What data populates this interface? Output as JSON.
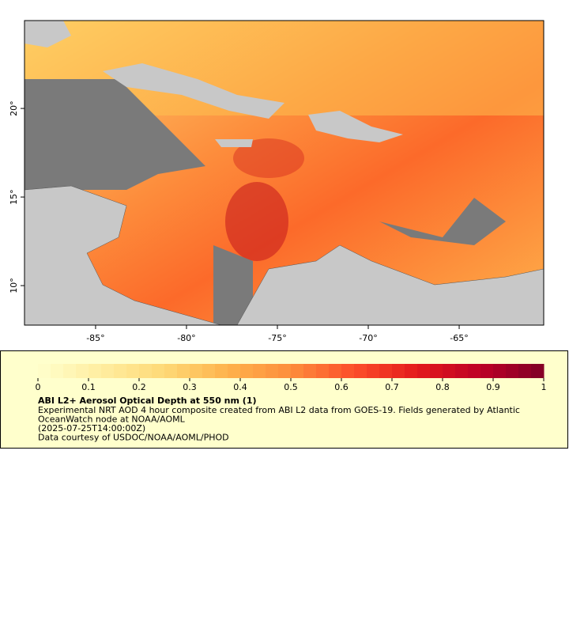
{
  "map": {
    "xlim": [
      -88.91,
      -60.35
    ],
    "ylim": [
      7.77,
      24.96
    ],
    "xticks": [
      {
        "value": -85,
        "label": "-85°"
      },
      {
        "value": -80,
        "label": "-80°"
      },
      {
        "value": -75,
        "label": "-75°"
      },
      {
        "value": -70,
        "label": "-70°"
      },
      {
        "value": -65,
        "label": "-65°"
      }
    ],
    "yticks": [
      {
        "value": 10,
        "label": "10°"
      },
      {
        "value": 15,
        "label": "15°"
      },
      {
        "value": 20,
        "label": "20°"
      }
    ]
  },
  "colorbar": {
    "range": [
      0,
      1
    ],
    "ticks": [
      0,
      0.1,
      0.2,
      0.3,
      0.4,
      0.5,
      0.6,
      0.7,
      0.8,
      0.9,
      1
    ],
    "colors": [
      "#ffffcc",
      "#ffeda0",
      "#fed976",
      "#feb24c",
      "#fd8d3c",
      "#fc4e2a",
      "#e31a1c",
      "#bd0026",
      "#800026"
    ]
  },
  "legend": {
    "title": "ABI L2+ Aerosol Optical Depth at 550 nm (1)",
    "lines": [
      "Experimental NRT AOD 4 hour composite created from ABI L2 data from GOES-19. Fields generated by Atlantic",
      "OceanWatch node at NOAA/AOML",
      "(2025-07-25T14:00:00Z)",
      "Data courtesy of USDOC/NOAA/AOML/PHOD"
    ]
  }
}
